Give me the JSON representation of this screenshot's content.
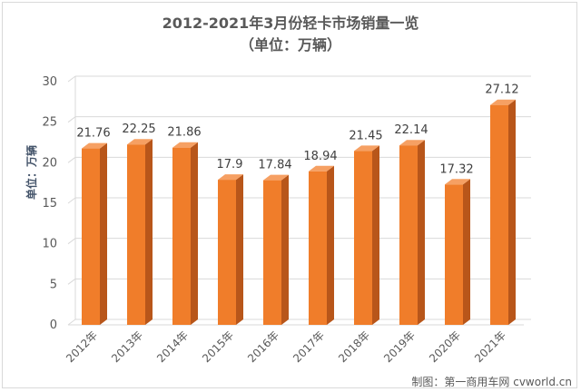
{
  "chart_data": {
    "type": "bar",
    "title": "2012-2021年3月份轻卡市场销量一览",
    "subtitle": "（单位：万辆）",
    "ylabel": "单位：万辆",
    "xlabel": "",
    "categories": [
      "2012年",
      "2013年",
      "2014年",
      "2015年",
      "2016年",
      "2017年",
      "2018年",
      "2019年",
      "2020年",
      "2021年"
    ],
    "values": [
      21.76,
      22.25,
      21.86,
      17.9,
      17.84,
      18.94,
      21.45,
      22.14,
      17.32,
      27.12
    ],
    "value_labels": [
      "21.76",
      "22.25",
      "21.86",
      "17.9",
      "17.84",
      "18.94",
      "21.45",
      "22.14",
      "17.32",
      "27.12"
    ],
    "ylim": [
      0,
      30
    ],
    "yticks": [
      "0",
      "5",
      "10",
      "15",
      "20",
      "25",
      "30"
    ],
    "grid": true,
    "legend": "none",
    "colors": {
      "bar_front": "#f07d2a",
      "bar_top": "#f6a063",
      "bar_side": "#b8561a",
      "grid": "#d9d9d9"
    }
  },
  "footer": "制图：第一商用车网 cvworld.cn"
}
